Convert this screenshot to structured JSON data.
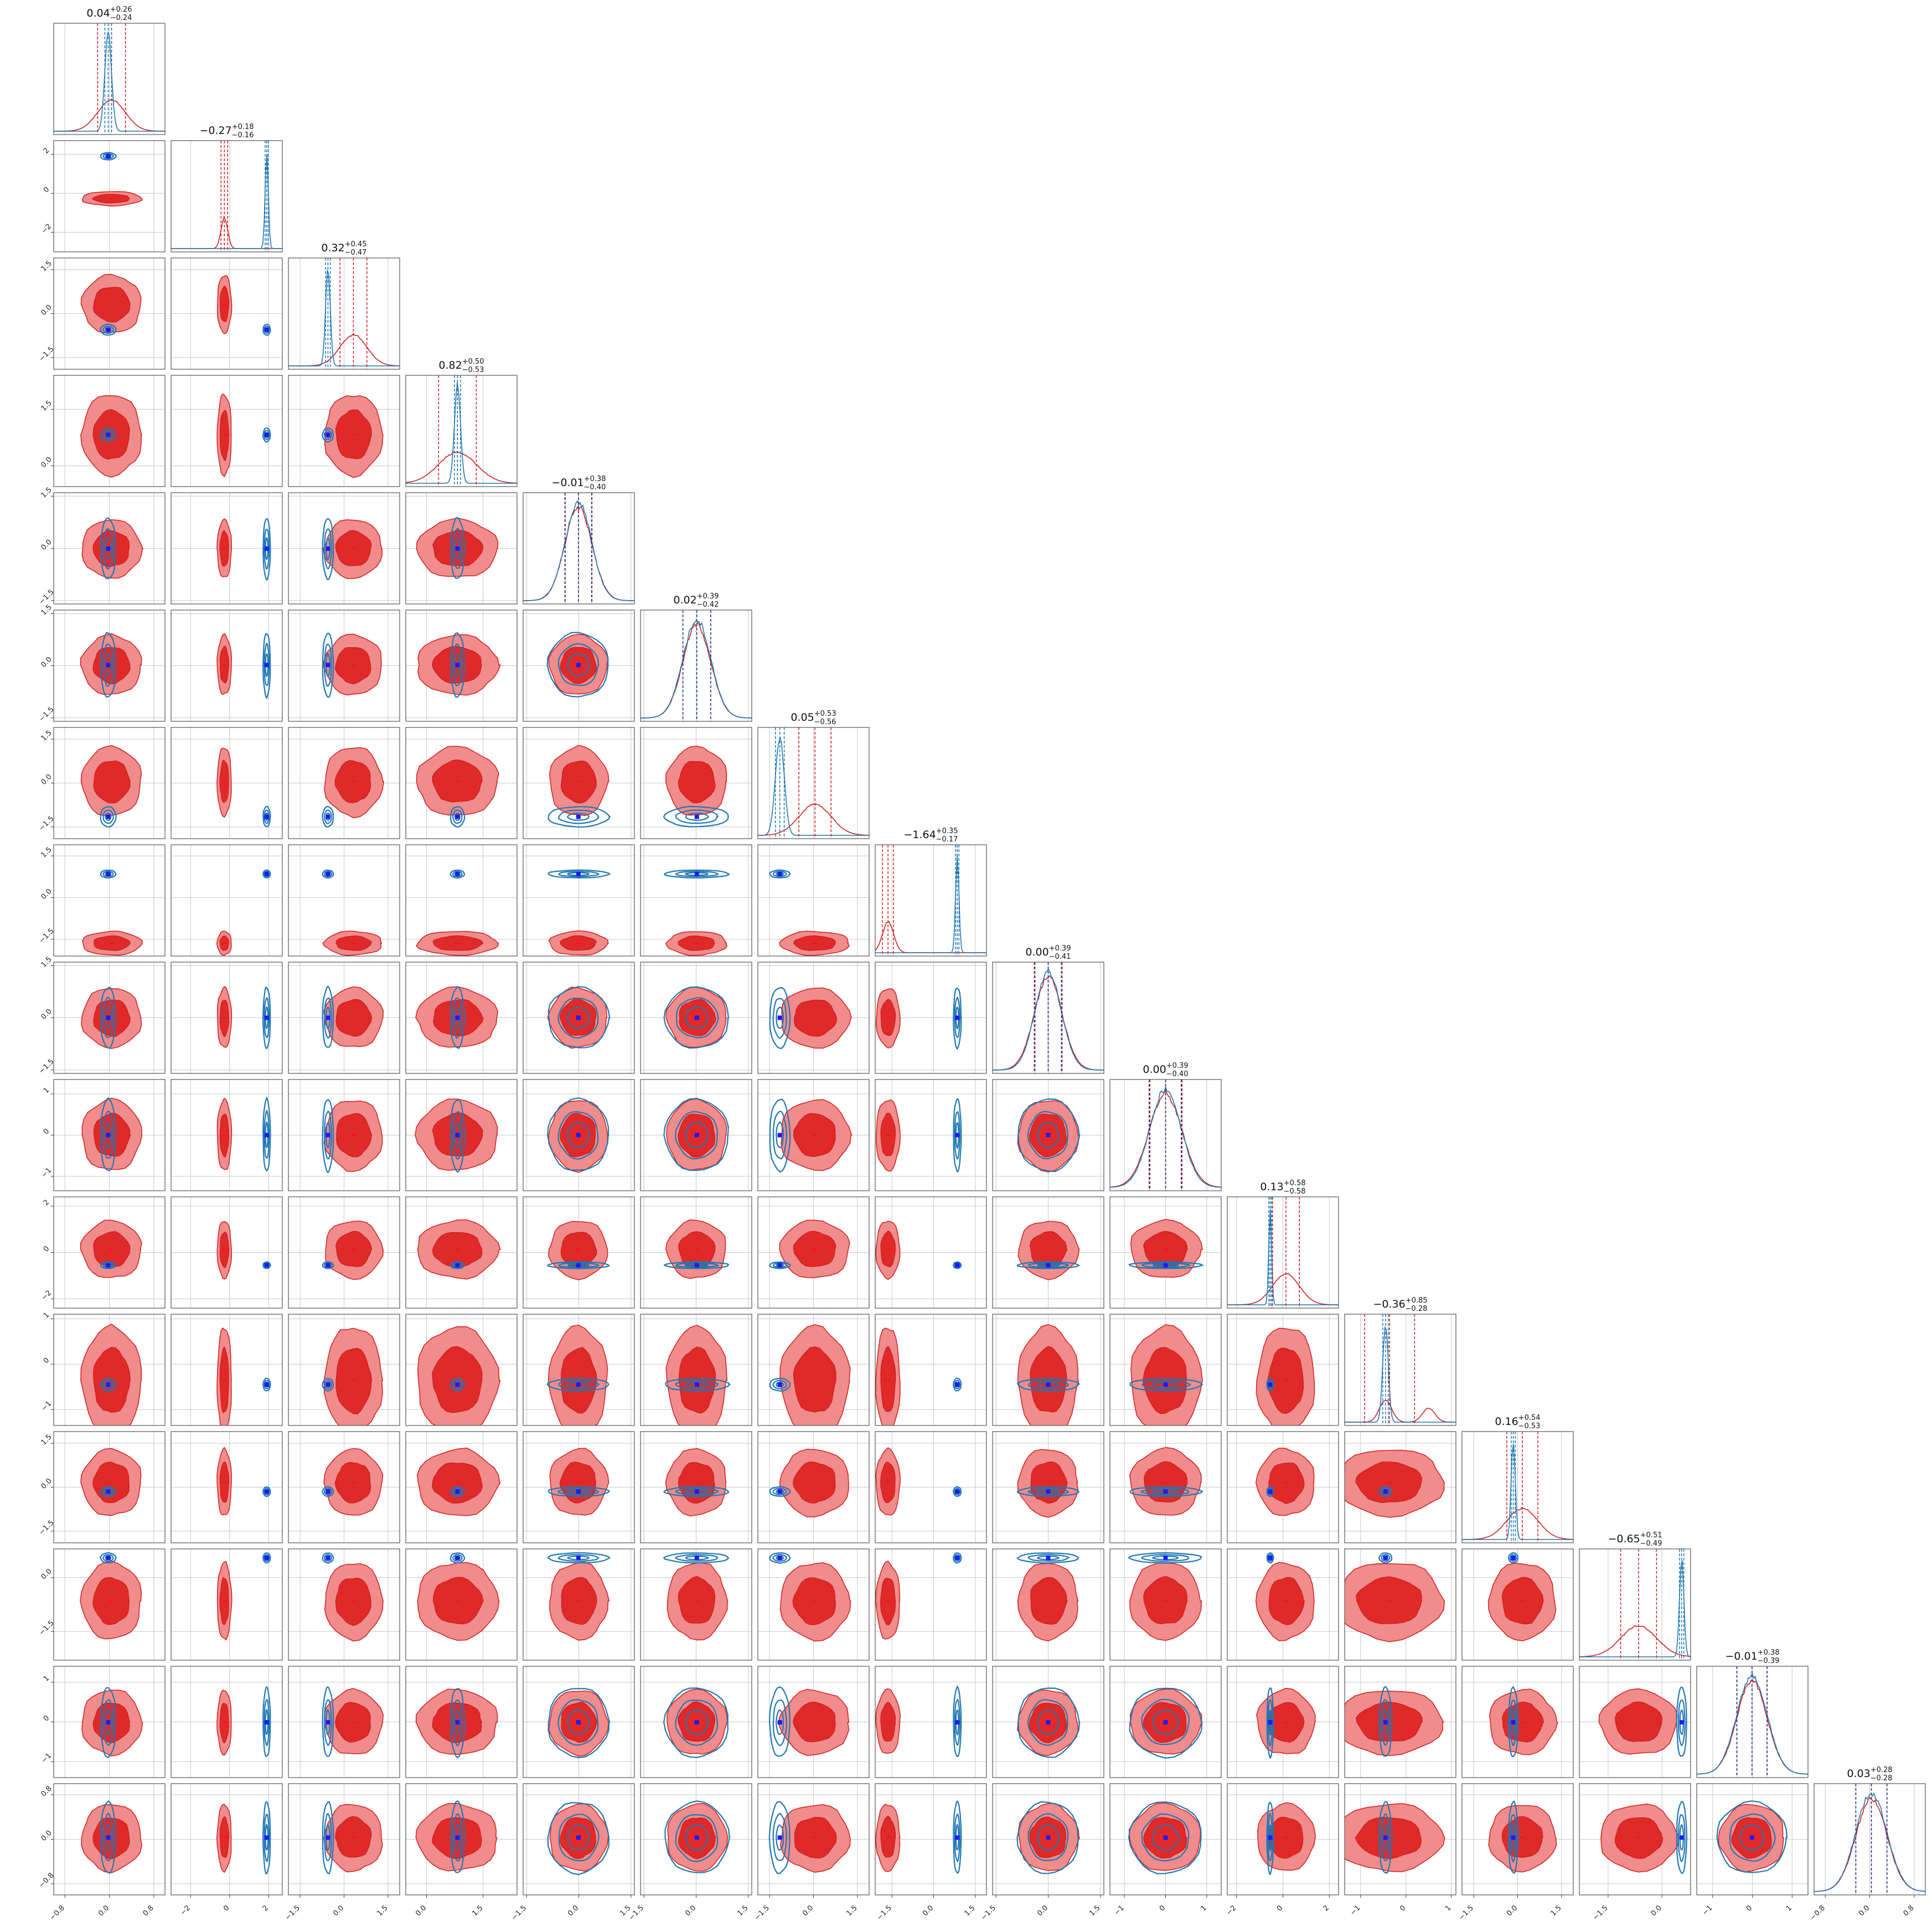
{
  "chart_data": {
    "type": "corner",
    "n_params": 16,
    "colors": {
      "red_fill_outer": "#f08c8c",
      "red_fill_inner": "#e02a2a",
      "red_line": "#d11f1f",
      "blue_line": "#1f77b4",
      "blue_dark": "#1f3f8f",
      "blue_marker": "#1a1aff",
      "red_marker": "#ff0000",
      "grid": "#c8c8c8"
    },
    "titles": [
      {
        "value": "0.04",
        "plus": "+0.26",
        "minus": "−0.24"
      },
      {
        "value": "−0.27",
        "plus": "+0.18",
        "minus": "−0.16"
      },
      {
        "value": "0.32",
        "plus": "+0.45",
        "minus": "−0.47"
      },
      {
        "value": "0.82",
        "plus": "+0.50",
        "minus": "−0.53"
      },
      {
        "value": "−0.01",
        "plus": "+0.38",
        "minus": "−0.40"
      },
      {
        "value": "0.02",
        "plus": "+0.39",
        "minus": "−0.42"
      },
      {
        "value": "0.05",
        "plus": "+0.53",
        "minus": "−0.56"
      },
      {
        "value": "−1.64",
        "plus": "+0.35",
        "minus": "−0.17"
      },
      {
        "value": "0.00",
        "plus": "+0.39",
        "minus": "−0.41"
      },
      {
        "value": "0.00",
        "plus": "+0.39",
        "minus": "−0.40"
      },
      {
        "value": "0.13",
        "plus": "+0.58",
        "minus": "−0.58"
      },
      {
        "value": "−0.36",
        "plus": "+0.85",
        "minus": "−0.28"
      },
      {
        "value": "0.16",
        "plus": "+0.54",
        "minus": "−0.53"
      },
      {
        "value": "−0.65",
        "plus": "+0.51",
        "minus": "−0.49"
      },
      {
        "value": "−0.01",
        "plus": "+0.38",
        "minus": "−0.39"
      },
      {
        "value": "0.03",
        "plus": "+0.28",
        "minus": "−0.28"
      }
    ],
    "params": [
      {
        "range": [
          -1.0,
          1.0
        ],
        "ticks": [
          -0.8,
          0.0,
          0.8
        ],
        "tick_labels": [
          "−0.8",
          "0.0",
          "0.8"
        ],
        "red_mu": 0.04,
        "red_sd": 0.25,
        "blue_mu": -0.02,
        "blue_sd": 0.06,
        "red_modes": []
      },
      {
        "range": [
          -3.0,
          2.7
        ],
        "ticks": [
          -2,
          0,
          2
        ],
        "tick_labels": [
          "−2",
          "0",
          "2"
        ],
        "red_mu": -0.27,
        "red_sd": 0.17,
        "blue_mu": 1.9,
        "blue_sd": 0.08,
        "red_modes": []
      },
      {
        "range": [
          -1.9,
          1.9
        ],
        "ticks": [
          -1.5,
          0.0,
          1.5
        ],
        "tick_labels": [
          "−1.5",
          "0.0",
          "1.5"
        ],
        "red_mu": 0.32,
        "red_sd": 0.46,
        "blue_mu": -0.55,
        "blue_sd": 0.08,
        "red_modes": []
      },
      {
        "range": [
          -0.55,
          2.4
        ],
        "ticks": [
          0.0,
          1.5
        ],
        "tick_labels": [
          "0.0",
          "1.5"
        ],
        "red_mu": 0.82,
        "red_sd": 0.5,
        "blue_mu": 0.82,
        "blue_sd": 0.08,
        "red_modes": []
      },
      {
        "range": [
          -1.6,
          1.6
        ],
        "ticks": [
          -1.5,
          0.0,
          1.5
        ],
        "tick_labels": [
          "−1.5",
          "0.0",
          "1.5"
        ],
        "red_mu": -0.01,
        "red_sd": 0.39,
        "blue_mu": -0.01,
        "blue_sd": 0.38,
        "red_modes": []
      },
      {
        "range": [
          -1.6,
          1.6
        ],
        "ticks": [
          -1.5,
          0.0,
          1.5
        ],
        "tick_labels": [
          "−1.5",
          "0.0",
          "1.5"
        ],
        "red_mu": 0.02,
        "red_sd": 0.4,
        "blue_mu": 0.02,
        "blue_sd": 0.4,
        "red_modes": []
      },
      {
        "range": [
          -1.9,
          1.9
        ],
        "ticks": [
          -1.5,
          0.0,
          1.5
        ],
        "tick_labels": [
          "−1.5",
          "0.0",
          "1.5"
        ],
        "red_mu": 0.05,
        "red_sd": 0.55,
        "blue_mu": -1.15,
        "blue_sd": 0.15,
        "red_modes": []
      },
      {
        "range": [
          -2.1,
          1.9
        ],
        "ticks": [
          -1.5,
          0.0,
          1.5
        ],
        "tick_labels": [
          "−1.5",
          "0.0",
          "1.5"
        ],
        "red_mu": -1.64,
        "red_sd": 0.2,
        "blue_mu": 0.85,
        "blue_sd": 0.06,
        "red_modes": []
      },
      {
        "range": [
          -1.6,
          1.6
        ],
        "ticks": [
          -1.5,
          0.0,
          1.5
        ],
        "tick_labels": [
          "−1.5",
          "0.0",
          "1.5"
        ],
        "red_mu": 0.0,
        "red_sd": 0.4,
        "blue_mu": 0.0,
        "blue_sd": 0.38,
        "red_modes": []
      },
      {
        "range": [
          -1.35,
          1.35
        ],
        "ticks": [
          -1,
          0,
          1
        ],
        "tick_labels": [
          "−1",
          "0",
          "1"
        ],
        "red_mu": 0.0,
        "red_sd": 0.4,
        "blue_mu": 0.0,
        "blue_sd": 0.38,
        "red_modes": []
      },
      {
        "range": [
          -2.4,
          2.4
        ],
        "ticks": [
          -2,
          0,
          2
        ],
        "tick_labels": [
          "−2",
          "0",
          "2"
        ],
        "red_mu": 0.13,
        "red_sd": 0.58,
        "blue_mu": -0.55,
        "blue_sd": 0.06,
        "red_modes": []
      },
      {
        "range": [
          -1.35,
          1.1
        ],
        "ticks": [
          -1,
          0,
          1
        ],
        "tick_labels": [
          "−1",
          "0",
          "1"
        ],
        "red_mu": -0.36,
        "red_sd": 0.55,
        "blue_mu": -0.45,
        "blue_sd": 0.06,
        "red_modes": [
          -0.45,
          0.5
        ]
      },
      {
        "range": [
          -1.9,
          1.9
        ],
        "ticks": [
          -1.5,
          0.0,
          1.5
        ],
        "tick_labels": [
          "−1.5",
          "0.0",
          "1.5"
        ],
        "red_mu": 0.16,
        "red_sd": 0.53,
        "blue_mu": -0.15,
        "blue_sd": 0.07,
        "red_modes": []
      },
      {
        "range": [
          -2.3,
          0.8
        ],
        "ticks": [
          -1.5,
          0.0
        ],
        "tick_labels": [
          "−1.5",
          "0.0"
        ],
        "red_mu": -0.65,
        "red_sd": 0.5,
        "blue_mu": 0.55,
        "blue_sd": 0.06,
        "red_modes": []
      },
      {
        "range": [
          -1.4,
          1.4
        ],
        "ticks": [
          -1,
          0,
          1
        ],
        "tick_labels": [
          "−1",
          "0",
          "1"
        ],
        "red_mu": -0.01,
        "red_sd": 0.38,
        "blue_mu": -0.01,
        "blue_sd": 0.38,
        "red_modes": []
      },
      {
        "range": [
          -1.0,
          1.0
        ],
        "ticks": [
          -0.8,
          0.0,
          0.8
        ],
        "tick_labels": [
          "−0.8",
          "0.0",
          "0.8"
        ],
        "red_mu": 0.03,
        "red_sd": 0.28,
        "blue_mu": 0.03,
        "blue_sd": 0.28,
        "red_modes": []
      }
    ]
  }
}
